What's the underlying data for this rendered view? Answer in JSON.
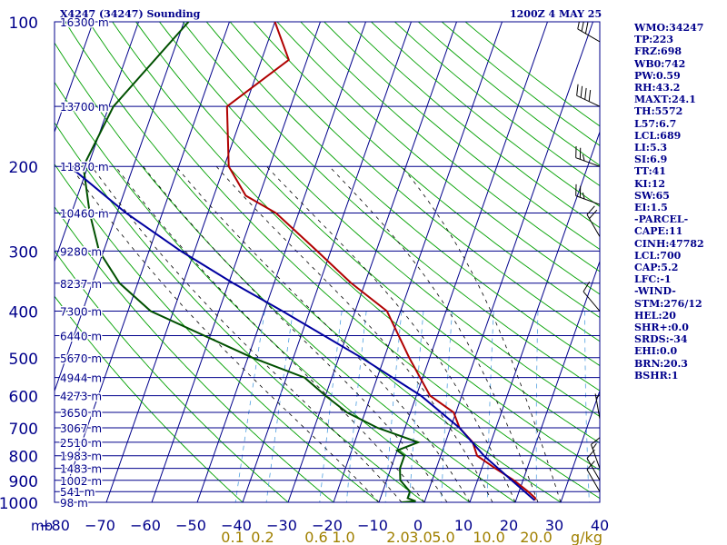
{
  "title": "X4247 (34247) Sounding",
  "valid_time": "1200Z  4 MAY 25",
  "pressure_unit": "mb",
  "mixing_unit": "g/kg",
  "indices": [
    "WMO:34247",
    "TP:223",
    "FRZ:698",
    "WB0:742",
    "PW:0.59",
    "RH:43.2",
    "MAXT:24.1",
    "TH:5572",
    "L57:6.7",
    "LCL:689",
    "LI:5.3",
    "SI:6.9",
    "TT:41",
    "KI:12",
    "SW:65",
    "EI:1.5",
    "-PARCEL-",
    "CAPE:11",
    "CINH:47782",
    "LCL:700",
    "CAP:5.2",
    "LFC:-1",
    "-WIND-",
    "STM:276/12",
    "HEL:20",
    "SHR+:0.0",
    "SRDS:-34",
    "EHI:0.0",
    "BRN:20.3",
    "BSHR:1"
  ],
  "colors": {
    "grid": "#00008b",
    "isotherm": "#00008b",
    "dry_adiabat": "#00a000",
    "moist_adiabat": "#000000",
    "mixing_ratio": "#4f9fe0",
    "temperature": "#b00000",
    "dewpoint": "#005000",
    "parcel": "#0000a0",
    "height_label": "#00008b",
    "mixing_label": "#a08000"
  },
  "chart_data": {
    "type": "line",
    "subtype": "skew-t log-p sounding",
    "xlabel": "",
    "ylabel": "",
    "pressure_ticks": [
      100,
      200,
      300,
      400,
      500,
      600,
      700,
      800,
      900,
      1000
    ],
    "temperature_ticks": [
      -80,
      -70,
      -60,
      -50,
      -40,
      -30,
      -20,
      -10,
      0,
      10,
      20,
      30,
      40
    ],
    "mixing_ratio_ticks": [
      "0.1",
      "0.2",
      "0.6",
      "1.0",
      "2.0",
      "3.0",
      "5.0",
      "10.0",
      "20.0"
    ],
    "height_labels": [
      {
        "p": 100,
        "label": "16300 m"
      },
      {
        "p": 150,
        "label": "13700 m"
      },
      {
        "p": 200,
        "label": "11870 m"
      },
      {
        "p": 250,
        "label": "10460 m"
      },
      {
        "p": 300,
        "label": "9280 m"
      },
      {
        "p": 350,
        "label": "8237 m"
      },
      {
        "p": 400,
        "label": "7300 m"
      },
      {
        "p": 450,
        "label": "6440 m"
      },
      {
        "p": 500,
        "label": "5670 m"
      },
      {
        "p": 550,
        "label": "4944 m"
      },
      {
        "p": 600,
        "label": "4273 m"
      },
      {
        "p": 650,
        "label": "3650 m"
      },
      {
        "p": 700,
        "label": "3067 m"
      },
      {
        "p": 750,
        "label": "2510 m"
      },
      {
        "p": 800,
        "label": "1983 m"
      },
      {
        "p": 850,
        "label": "1483 m"
      },
      {
        "p": 900,
        "label": "1002 m"
      },
      {
        "p": 950,
        "label": "541 m"
      },
      {
        "p": 1000,
        "label": "98 m"
      }
    ],
    "series": [
      {
        "key": "temperature",
        "points": [
          [
            100,
            -70
          ],
          [
            120,
            -64
          ],
          [
            150,
            -74
          ],
          [
            200,
            -69
          ],
          [
            230,
            -63
          ],
          [
            250,
            -55
          ],
          [
            300,
            -43
          ],
          [
            350,
            -33
          ],
          [
            400,
            -23
          ],
          [
            500,
            -14.5
          ],
          [
            600,
            -7
          ],
          [
            650,
            -0.5
          ],
          [
            700,
            2
          ],
          [
            750,
            6
          ],
          [
            800,
            8
          ],
          [
            850,
            13
          ],
          [
            900,
            18
          ],
          [
            950,
            22
          ],
          [
            980,
            24.1
          ],
          [
            990,
            24.1
          ]
        ]
      },
      {
        "key": "dewpoint",
        "points": [
          [
            100,
            -89
          ],
          [
            150,
            -99
          ],
          [
            200,
            -101
          ],
          [
            250,
            -96
          ],
          [
            300,
            -91
          ],
          [
            350,
            -84
          ],
          [
            400,
            -75
          ],
          [
            500,
            -49
          ],
          [
            550,
            -36
          ],
          [
            600,
            -30
          ],
          [
            650,
            -24
          ],
          [
            700,
            -16
          ],
          [
            750,
            -6
          ],
          [
            780,
            -10
          ],
          [
            800,
            -8
          ],
          [
            850,
            -8
          ],
          [
            900,
            -7
          ],
          [
            950,
            -4
          ],
          [
            980,
            -4
          ],
          [
            995,
            -2
          ],
          [
            1000,
            -5
          ]
        ]
      },
      {
        "key": "parcel",
        "points": [
          [
            200,
            -104
          ],
          [
            250,
            -88
          ],
          [
            300,
            -73
          ],
          [
            350,
            -59
          ],
          [
            400,
            -46
          ],
          [
            500,
            -25
          ],
          [
            600,
            -9
          ],
          [
            700,
            2
          ],
          [
            800,
            9.5
          ],
          [
            900,
            17.5
          ],
          [
            990,
            24.1
          ]
        ]
      }
    ],
    "wind_barbs": [
      {
        "p": 110,
        "dir": 300,
        "spd": 30
      },
      {
        "p": 150,
        "dir": 295,
        "spd": 40
      },
      {
        "p": 200,
        "dir": 290,
        "spd": 25
      },
      {
        "p": 240,
        "dir": 290,
        "spd": 25
      },
      {
        "p": 280,
        "dir": 330,
        "spd": 20
      },
      {
        "p": 400,
        "dir": 320,
        "spd": 10
      },
      {
        "p": 670,
        "dir": 350,
        "spd": 5
      },
      {
        "p": 850,
        "dir": 340,
        "spd": 15
      },
      {
        "p": 900,
        "dir": 330,
        "spd": 10
      },
      {
        "p": 950,
        "dir": 330,
        "spd": 10
      }
    ]
  }
}
